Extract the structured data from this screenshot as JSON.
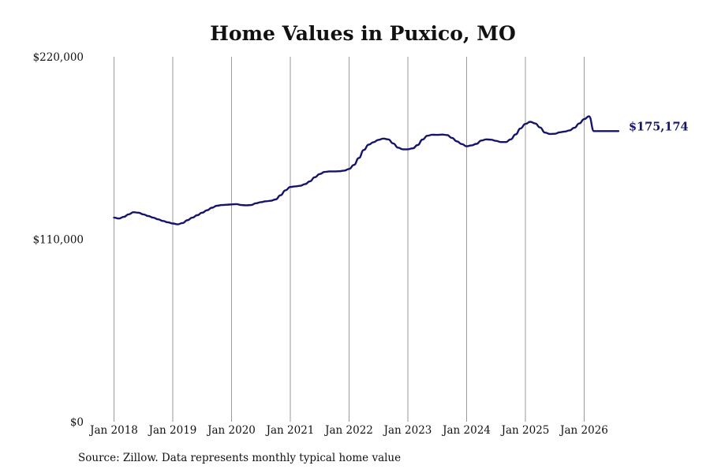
{
  "chart_data": {
    "type": "line",
    "title": "Home Values in Puxico, MO",
    "xlabel": "",
    "ylabel": "",
    "ylim": [
      0,
      220000
    ],
    "yticks": [
      0,
      110000,
      220000
    ],
    "ytick_labels": [
      "$0",
      "$110,000",
      "$220,000"
    ],
    "xticks": [
      "2018-01",
      "2019-01",
      "2020-01",
      "2021-01",
      "2022-01",
      "2023-01",
      "2024-01",
      "2025-01",
      "2026-01"
    ],
    "xtick_labels": [
      "Jan 2018",
      "Jan 2019",
      "Jan 2020",
      "Jan 2021",
      "Jan 2022",
      "Jan 2023",
      "Jan 2024",
      "Jan 2025",
      "Jan 2026"
    ],
    "grid": "vertical",
    "line_color": "#14146b",
    "end_label": "$175,174",
    "series": [
      {
        "x": [
          "2018-01",
          "2018-02",
          "2018-03",
          "2018-04",
          "2018-05",
          "2018-06",
          "2018-07",
          "2018-08",
          "2018-09",
          "2018-10",
          "2018-11",
          "2018-12",
          "2019-01",
          "2019-02",
          "2019-03",
          "2019-04",
          "2019-05",
          "2019-06",
          "2019-07",
          "2019-08",
          "2019-09",
          "2019-10",
          "2019-11",
          "2019-12",
          "2020-01",
          "2020-02",
          "2020-03",
          "2020-04",
          "2020-05",
          "2020-06",
          "2020-07",
          "2020-08",
          "2020-09",
          "2020-10",
          "2020-11",
          "2020-12",
          "2021-01",
          "2021-02",
          "2021-03",
          "2021-04",
          "2021-05",
          "2021-06",
          "2021-07",
          "2021-08",
          "2021-09",
          "2021-10",
          "2021-11",
          "2021-12",
          "2022-01",
          "2022-02",
          "2022-03",
          "2022-04",
          "2022-05",
          "2022-06",
          "2022-07",
          "2022-08",
          "2022-09",
          "2022-10",
          "2022-11",
          "2022-12",
          "2023-01",
          "2023-02",
          "2023-03",
          "2023-04",
          "2023-05",
          "2023-06",
          "2023-07",
          "2023-08",
          "2023-09",
          "2023-10",
          "2023-11",
          "2023-12",
          "2024-01",
          "2024-02",
          "2024-03",
          "2024-04",
          "2024-05",
          "2024-06",
          "2024-07",
          "2024-08",
          "2024-09",
          "2024-10",
          "2024-11",
          "2024-12",
          "2025-01",
          "2025-02",
          "2025-03",
          "2025-04",
          "2025-05",
          "2025-06",
          "2025-07",
          "2025-08",
          "2025-09",
          "2025-10",
          "2025-11",
          "2025-12",
          "2026-01",
          "2026-02",
          "2026-03",
          "2026-04",
          "2026-05",
          "2026-06",
          "2026-07",
          "2026-08"
        ],
        "values": [
          123000,
          122500,
          123500,
          125000,
          126300,
          126000,
          125000,
          124000,
          123000,
          122000,
          121000,
          120200,
          119500,
          119000,
          119800,
          121500,
          123000,
          124500,
          126000,
          127500,
          129000,
          130200,
          130600,
          130800,
          131000,
          131200,
          130600,
          130500,
          130600,
          131700,
          132400,
          132900,
          133200,
          134000,
          136500,
          139500,
          141500,
          141900,
          142200,
          143200,
          144900,
          147400,
          149300,
          150600,
          150900,
          150900,
          151000,
          151400,
          152400,
          154800,
          159000,
          163800,
          167000,
          168500,
          169900,
          170700,
          170200,
          167800,
          165200,
          164200,
          164200,
          164800,
          166800,
          170100,
          172400,
          173000,
          172900,
          173100,
          172800,
          171100,
          169000,
          167400,
          166000,
          166600,
          167500,
          169500,
          170200,
          170000,
          169300,
          168600,
          168600,
          170200,
          173200,
          176800,
          179500,
          180800,
          179800,
          177400,
          174300,
          173500,
          173600,
          174500,
          174900,
          175600,
          177200,
          179800,
          182400,
          184100,
          175174,
          175174,
          175174,
          175174,
          175174,
          175174
        ]
      }
    ]
  },
  "source_note": "Source: Zillow. Data represents monthly typical home value"
}
